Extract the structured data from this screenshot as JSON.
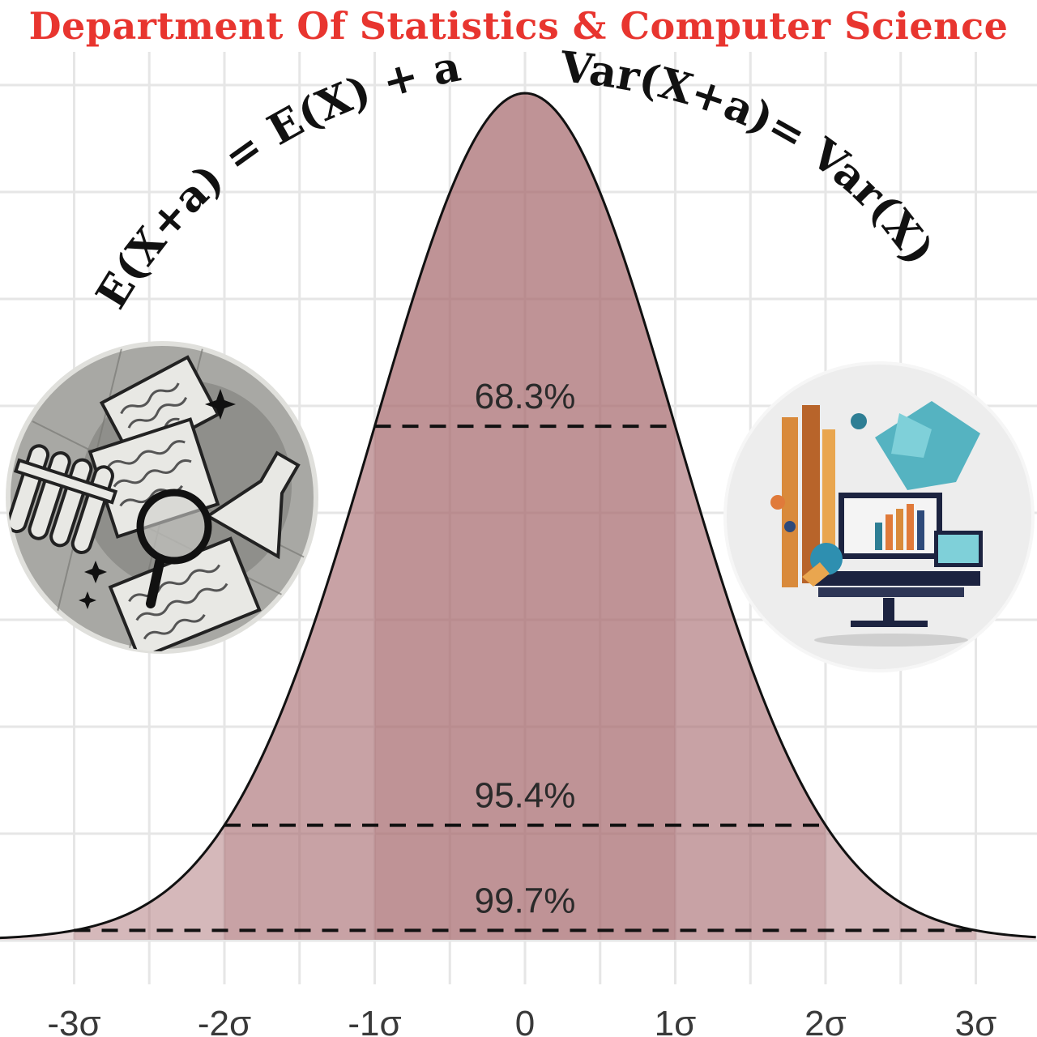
{
  "header": {
    "title": "Department Of Statistics & Computer Science",
    "title_color": "#e8352f"
  },
  "formulas": {
    "left": "E(X+a) = E(X) + a",
    "right": "Var(X+a)= Var(X)"
  },
  "chart_data": {
    "type": "area",
    "distribution": "normal",
    "mean": 0,
    "sd": 1,
    "x_tick_labels": [
      "-3σ",
      "-2σ",
      "-1σ",
      "0",
      "1σ",
      "2σ",
      "3σ"
    ],
    "x_ticks": [
      -3,
      -2,
      -1,
      0,
      1,
      2,
      3
    ],
    "xlim": [
      -3.5,
      3.4
    ],
    "grid": true,
    "bands": [
      {
        "label": "68.3%",
        "from": -1,
        "to": 1
      },
      {
        "label": "95.4%",
        "from": -2,
        "to": 2
      },
      {
        "label": "99.7%",
        "from": -3,
        "to": 3
      }
    ],
    "colors": {
      "fill": "#a86a6f",
      "curve": "#111111",
      "grid": "#e6e6e6"
    }
  },
  "illustrations": {
    "left": "statistics-documents-icon",
    "right": "computer-science-workstation-icon"
  }
}
